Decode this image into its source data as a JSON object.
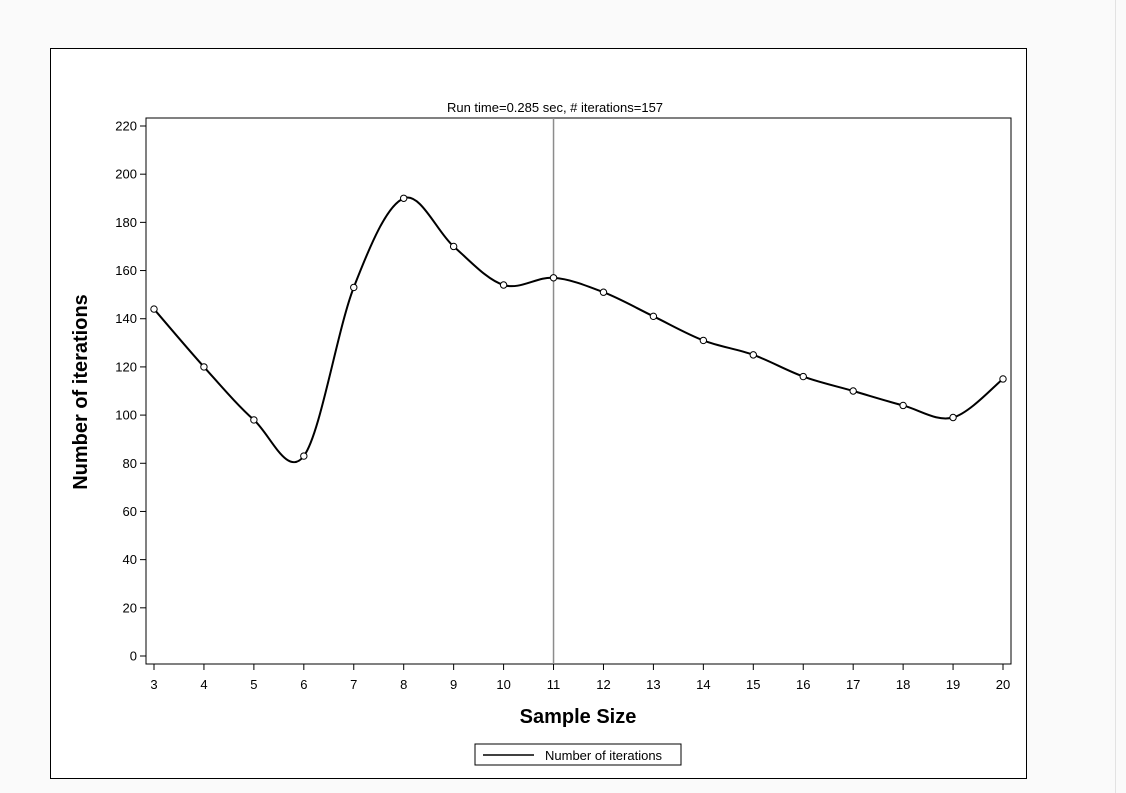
{
  "chart_data": {
    "type": "line",
    "title": "Run time=0.285 sec, # iterations=157",
    "xlabel": "Sample Size",
    "ylabel": "Number of iterations",
    "x": [
      3,
      4,
      5,
      6,
      7,
      8,
      9,
      10,
      11,
      12,
      13,
      14,
      15,
      16,
      17,
      18,
      19,
      20
    ],
    "series": [
      {
        "name": "Number of iterations",
        "values": [
          144,
          120,
          98,
          83,
          153,
          190,
          170,
          154,
          157,
          151,
          141,
          131,
          125,
          116,
          110,
          104,
          99,
          115
        ],
        "markers": "open-circle",
        "curve": "smooth-spline"
      }
    ],
    "reference_line_x": 11,
    "xlim": [
      3,
      20
    ],
    "ylim": [
      0,
      220
    ],
    "xticks": [
      "3",
      "4",
      "5",
      "6",
      "7",
      "8",
      "9",
      "10",
      "11",
      "12",
      "13",
      "14",
      "15",
      "16",
      "17",
      "18",
      "19",
      "20"
    ],
    "yticks": [
      "0",
      "20",
      "40",
      "60",
      "80",
      "100",
      "120",
      "140",
      "160",
      "180",
      "200",
      "220"
    ],
    "grid": false,
    "legend_position": "bottom-center",
    "colors": {
      "line": "#000000",
      "reference_line": "#8c8c8c"
    }
  }
}
